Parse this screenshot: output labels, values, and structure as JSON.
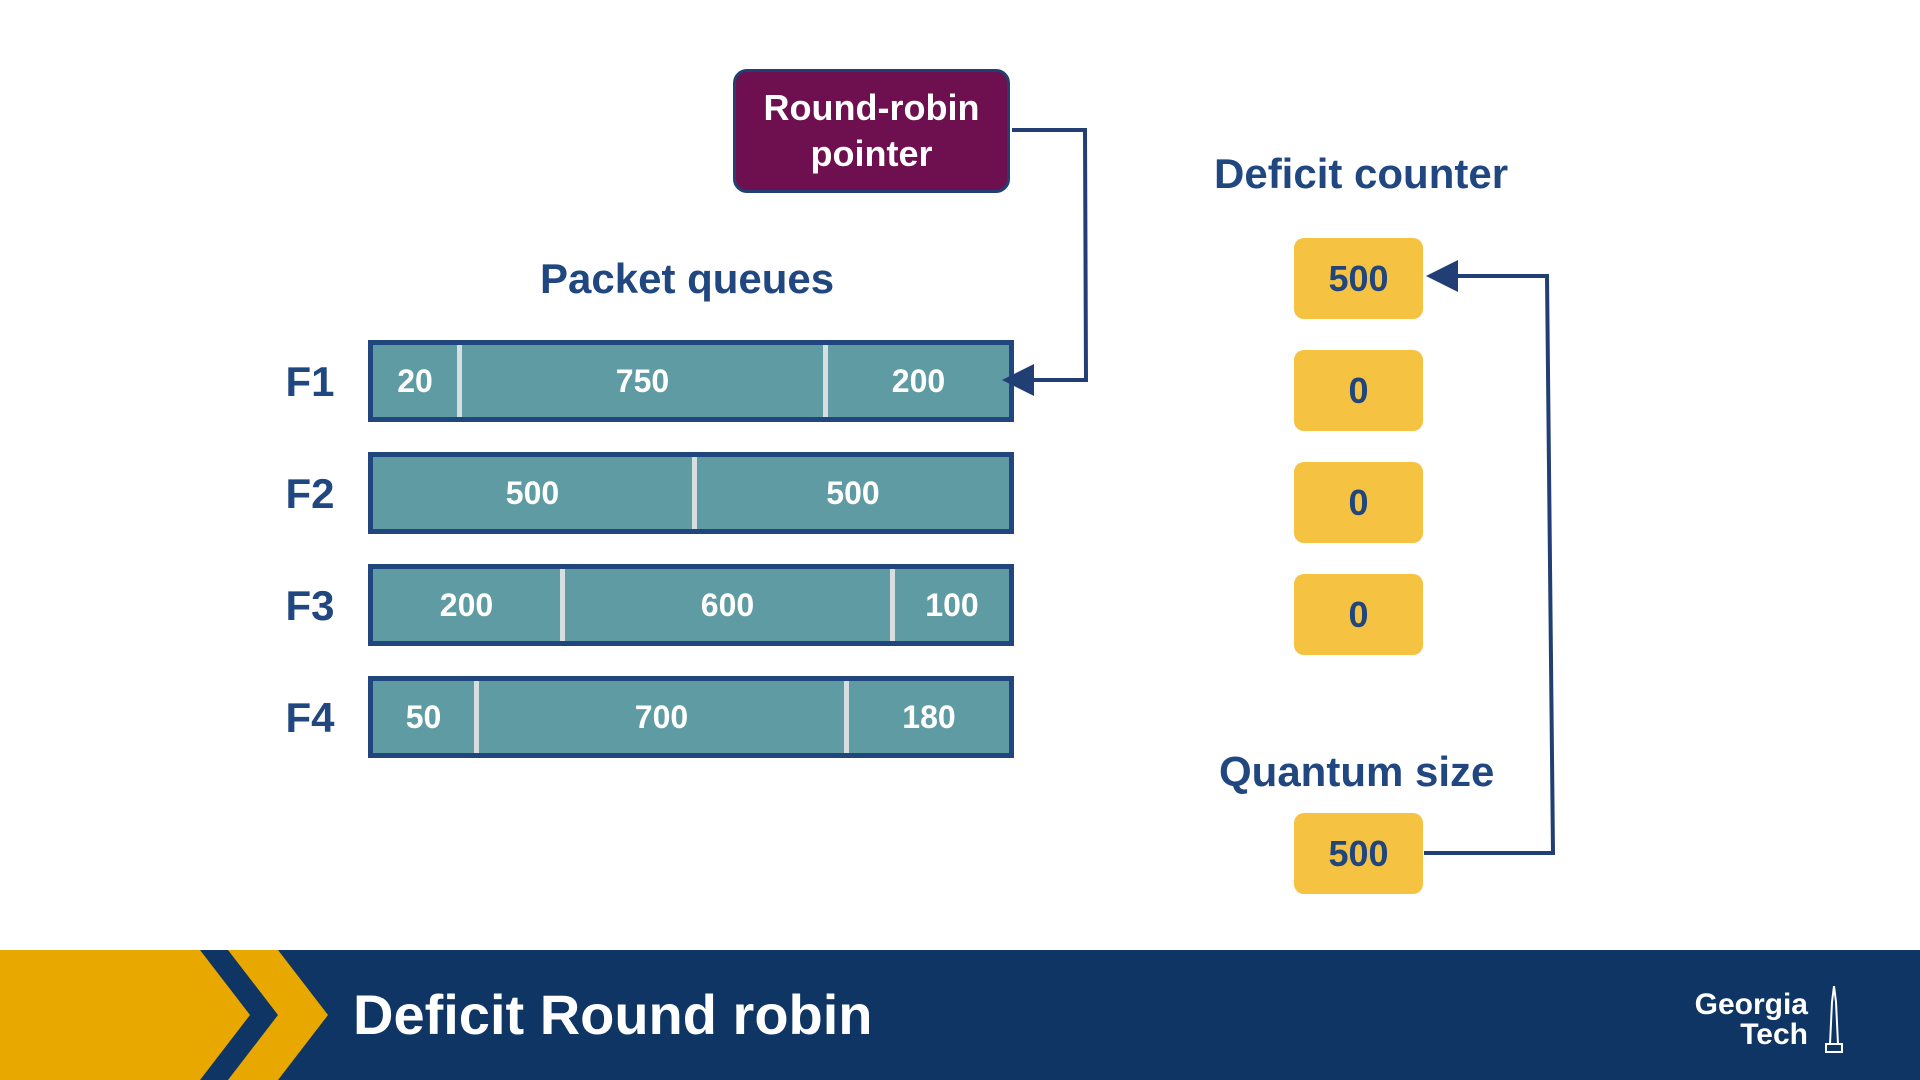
{
  "pointer": {
    "label": "Round-robin\npointer"
  },
  "headings": {
    "packet_queues": "Packet queues",
    "deficit_counter": "Deficit counter",
    "quantum_size": "Quantum size"
  },
  "queues": [
    {
      "flow": "F1",
      "packets": [
        {
          "size": "20"
        },
        {
          "size": "750"
        },
        {
          "size": "200"
        }
      ]
    },
    {
      "flow": "F2",
      "packets": [
        {
          "size": "500"
        },
        {
          "size": "500"
        }
      ]
    },
    {
      "flow": "F3",
      "packets": [
        {
          "size": "200"
        },
        {
          "size": "600"
        },
        {
          "size": "100"
        }
      ]
    },
    {
      "flow": "F4",
      "packets": [
        {
          "size": "50"
        },
        {
          "size": "700"
        },
        {
          "size": "180"
        }
      ]
    }
  ],
  "deficit_counters": [
    "500",
    "0",
    "0",
    "0"
  ],
  "quantum": {
    "value": "500"
  },
  "footer": {
    "title": "Deficit Round robin",
    "logo_line1": "Georgia",
    "logo_line2": "Tech"
  },
  "colors": {
    "pointer_fill": "#6e0f4f",
    "queue_fill": "#5e9ba3",
    "queue_border": "#21467d",
    "counter_fill": "#f5c242",
    "heading_text": "#20477f",
    "footer_bg": "#0f3564",
    "footer_accent": "#e8a800"
  }
}
